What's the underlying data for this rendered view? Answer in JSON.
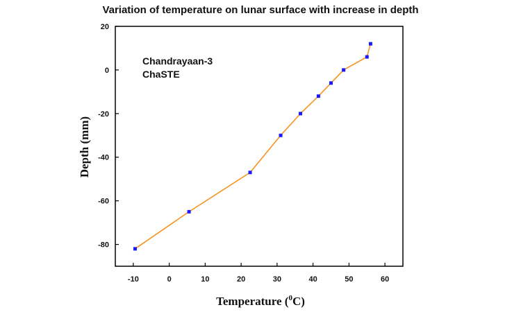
{
  "chart_data": {
    "type": "line",
    "title": "Variation of temperature on lunar surface with increase in depth",
    "xlabel": "Temperature (",
    "xlabel_sup": "0",
    "xlabel_unit": "C)",
    "ylabel": "Depth (mm)",
    "xlim": [
      -15,
      65
    ],
    "ylim": [
      -90,
      20
    ],
    "xticks": [
      -10,
      0,
      10,
      20,
      30,
      40,
      50,
      60
    ],
    "yticks": [
      20,
      0,
      -20,
      -40,
      -60,
      -80
    ],
    "annotations": [
      "Chandrayaan-3",
      "ChaSTE"
    ],
    "line_color": "#f7931e",
    "marker_color": "#1a1aff",
    "grid": false,
    "series": [
      {
        "x": [
          -9.5,
          5.5,
          22.5,
          31,
          36.5,
          41.5,
          45,
          48.5,
          55,
          56
        ],
        "y": [
          -82,
          -65,
          -47,
          -30,
          -20,
          -12,
          -6,
          0,
          6,
          12
        ]
      }
    ]
  }
}
